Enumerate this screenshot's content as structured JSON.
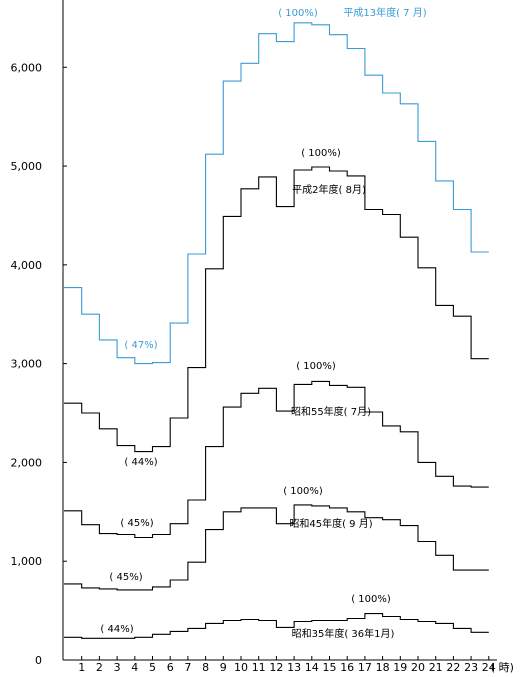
{
  "chart_data": {
    "type": "line",
    "step": true,
    "x_tick_labels": [
      "1",
      "2",
      "3",
      "4",
      "5",
      "6",
      "7",
      "8",
      "9",
      "10",
      "11",
      "12",
      "13",
      "14",
      "15",
      "16",
      "17",
      "18",
      "19",
      "20",
      "21",
      "22",
      "23",
      "24"
    ],
    "x_unit_label": "( 時)",
    "y_ticks": [
      0,
      1000,
      2000,
      3000,
      4000,
      5000,
      6000
    ],
    "y_tick_labels": [
      "0",
      "1,000",
      "2,000",
      "3,000",
      "4,000",
      "5,000",
      "6,000"
    ],
    "ylim": [
      0,
      6600
    ],
    "grid": false,
    "series": [
      {
        "name": "平成13年度( 7 月)",
        "color": "#3a9bd5",
        "values": [
          3770,
          3500,
          3240,
          3060,
          3000,
          3010,
          3410,
          4110,
          5120,
          5860,
          6040,
          6340,
          6260,
          6450,
          6430,
          6330,
          6190,
          5920,
          5740,
          5630,
          5250,
          4850,
          4560,
          4130
        ]
      },
      {
        "name": "平成2年度( 8月)",
        "color": "#000000",
        "values": [
          2600,
          2500,
          2340,
          2170,
          2110,
          2160,
          2450,
          2960,
          3960,
          4490,
          4770,
          4890,
          4590,
          4960,
          4990,
          4950,
          4900,
          4560,
          4510,
          4280,
          3970,
          3590,
          3480,
          3050
        ]
      },
      {
        "name": "昭和55年度( 7月)",
        "color": "#000000",
        "values": [
          1510,
          1370,
          1280,
          1270,
          1240,
          1270,
          1380,
          1620,
          2160,
          2560,
          2700,
          2750,
          2520,
          2790,
          2820,
          2780,
          2760,
          2510,
          2370,
          2310,
          2000,
          1860,
          1760,
          1750
        ]
      },
      {
        "name": "昭和45年度( 9 月)",
        "color": "#000000",
        "values": [
          770,
          730,
          720,
          710,
          710,
          740,
          810,
          990,
          1320,
          1500,
          1540,
          1540,
          1380,
          1570,
          1560,
          1540,
          1500,
          1440,
          1420,
          1360,
          1200,
          1060,
          910,
          910
        ]
      },
      {
        "name": "昭和35年度( 36年1月)",
        "color": "#000000",
        "values": [
          230,
          220,
          220,
          220,
          230,
          260,
          290,
          320,
          370,
          400,
          410,
          400,
          330,
          390,
          400,
          400,
          420,
          470,
          440,
          410,
          390,
          370,
          320,
          280
        ]
      }
    ],
    "annotations": [
      {
        "text": "( 100%)",
        "series": 0,
        "color": "#3a9bd5"
      },
      {
        "text": "平成13年度( 7 月)",
        "series": 0,
        "color": "#3a9bd5"
      },
      {
        "text": "( 47%)",
        "series": 0,
        "color": "#3a9bd5"
      },
      {
        "text": "( 100%)",
        "series": 1,
        "color": "#000000"
      },
      {
        "text": "平成2年度( 8月)",
        "series": 1,
        "color": "#000000"
      },
      {
        "text": "( 44%)",
        "series": 1,
        "color": "#000000"
      },
      {
        "text": "( 100%)",
        "series": 2,
        "color": "#000000"
      },
      {
        "text": "昭和55年度( 7月)",
        "series": 2,
        "color": "#000000"
      },
      {
        "text": "( 45%)",
        "series": 2,
        "color": "#000000"
      },
      {
        "text": "( 100%)",
        "series": 3,
        "color": "#000000"
      },
      {
        "text": "昭和45年度( 9 月)",
        "series": 3,
        "color": "#000000"
      },
      {
        "text": "( 45%)",
        "series": 3,
        "color": "#000000"
      },
      {
        "text": "( 44%)",
        "series": 4,
        "color": "#000000"
      },
      {
        "text": "( 100%)",
        "series": 4,
        "color": "#000000"
      },
      {
        "text": "昭和35年度( 36年1月)",
        "series": 4,
        "color": "#000000"
      }
    ]
  }
}
